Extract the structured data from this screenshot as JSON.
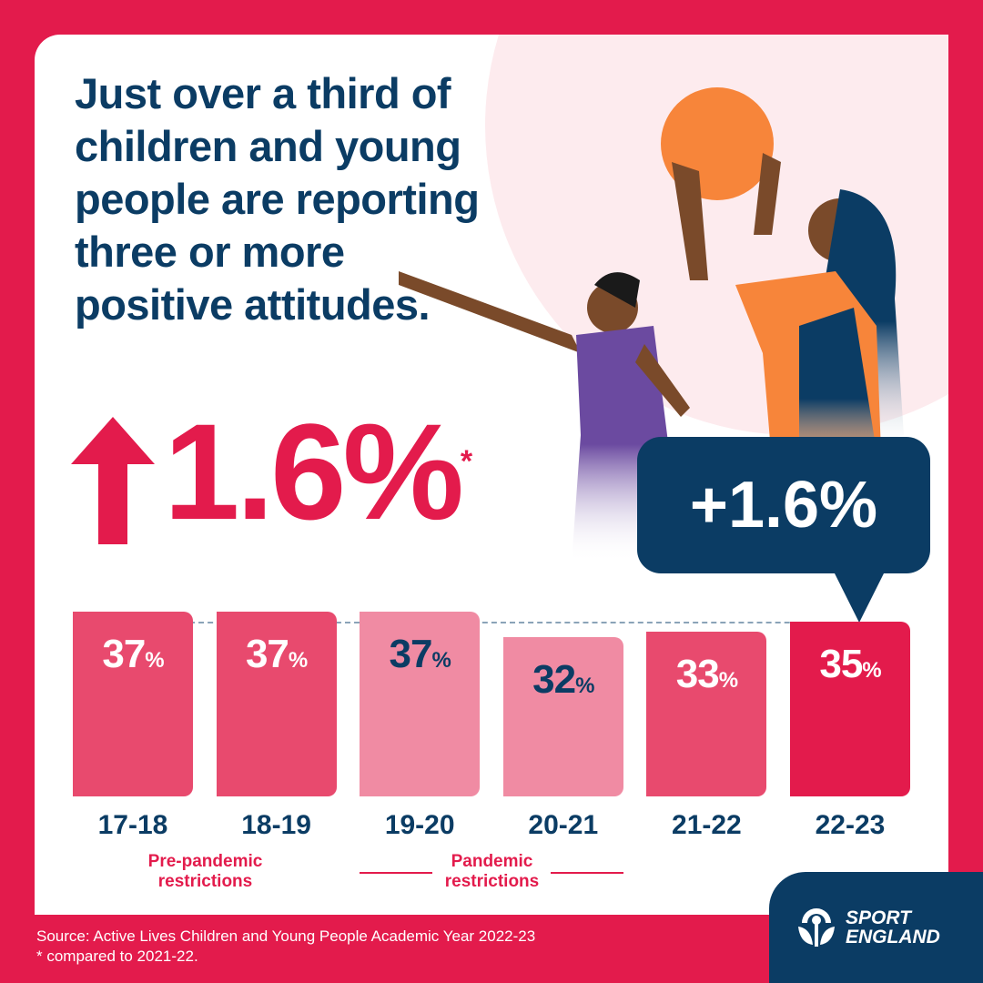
{
  "headline": "Just over a third of children and young people are reporting three or more positive attitudes.",
  "big_stat": {
    "value": "1.6%",
    "footnote_marker": "*",
    "direction": "up"
  },
  "callout": "+1.6%",
  "periods": {
    "pre": "Pre-pandemic restrictions",
    "pandemic": "Pandemic restrictions"
  },
  "footer": {
    "source": "Source: Active Lives Children and Young People Academic Year 2022-23",
    "note": "* compared to 2021-22."
  },
  "logo": {
    "line1": "SPORT",
    "line2": "ENGLAND"
  },
  "colors": {
    "red": "#e31b4c",
    "mid": "#e84a6e",
    "light": "#f08ba3",
    "navy": "#0b3c64"
  },
  "chart_data": {
    "type": "bar",
    "title": "Just over a third of children and young people are reporting three or more positive attitudes.",
    "categories": [
      "17-18",
      "18-19",
      "19-20",
      "20-21",
      "21-22",
      "22-23"
    ],
    "values": [
      37,
      37,
      37,
      32,
      33,
      35
    ],
    "labels": [
      "37",
      "37",
      "37",
      "32",
      "33",
      "35"
    ],
    "unit": "%",
    "xlabel": "",
    "ylabel": "",
    "annotations": [
      "+1.6%",
      "Pre-pandemic restrictions",
      "Pandemic restrictions"
    ]
  }
}
